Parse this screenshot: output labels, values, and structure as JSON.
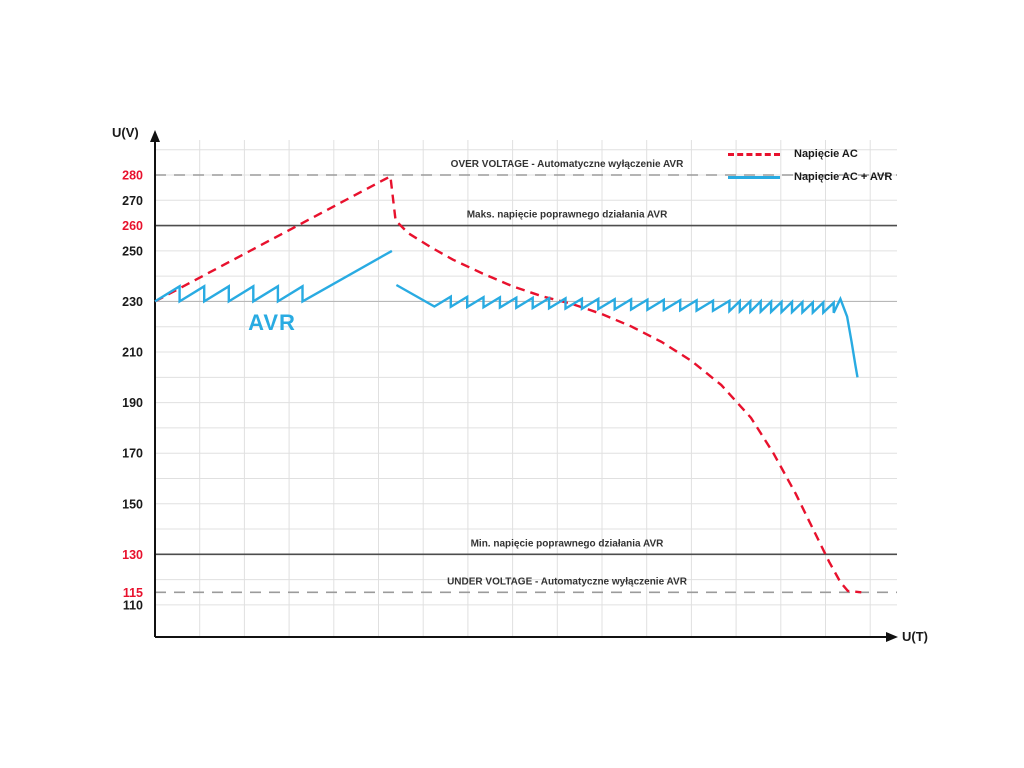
{
  "chart_data": {
    "type": "line",
    "title": "",
    "xlabel": "U(T)",
    "ylabel": "U(V)",
    "xlim": [
      0,
      100
    ],
    "ylim": [
      105,
      292
    ],
    "grid": {
      "enabled": true,
      "y_step_volts": 10,
      "x_step": 6
    },
    "legend_position": "top-right",
    "y_ticks": [
      {
        "value": 280,
        "color": "#e8112d"
      },
      {
        "value": 270,
        "color": "#1a1a1a"
      },
      {
        "value": 260,
        "color": "#e8112d"
      },
      {
        "value": 250,
        "color": "#1a1a1a"
      },
      {
        "value": 230,
        "color": "#1a1a1a"
      },
      {
        "value": 210,
        "color": "#1a1a1a"
      },
      {
        "value": 190,
        "color": "#1a1a1a"
      },
      {
        "value": 170,
        "color": "#1a1a1a"
      },
      {
        "value": 150,
        "color": "#1a1a1a"
      },
      {
        "value": 130,
        "color": "#e8112d"
      },
      {
        "value": 115,
        "color": "#e8112d"
      },
      {
        "value": 110,
        "color": "#1a1a1a"
      }
    ],
    "reference_lines": [
      {
        "value": 280,
        "style": "dashed",
        "label": "OVER VOLTAGE - Automatyczne wyłączenie AVR"
      },
      {
        "value": 260,
        "style": "solid",
        "label": "Maks. napięcie poprawnego działania AVR"
      },
      {
        "value": 230,
        "style": "solid-light",
        "label": ""
      },
      {
        "value": 130,
        "style": "solid",
        "label": "Min. napięcie poprawnego działania AVR"
      },
      {
        "value": 115,
        "style": "dashed",
        "label": "UNDER VOLTAGE - Automatyczne wyłączenie AVR"
      }
    ],
    "series": [
      {
        "name": "Napięcie AC",
        "color": "#e8112d",
        "dash": true,
        "segments": [
          [
            [
              0,
              230
            ],
            [
              31.6,
              279.5
            ],
            [
              32.3,
              262
            ],
            [
              34,
              257
            ],
            [
              37,
              251.5
            ],
            [
              40,
              246.5
            ],
            [
              44,
              241
            ],
            [
              48,
              236
            ],
            [
              52,
              232
            ],
            [
              56,
              229
            ],
            [
              60,
              225
            ],
            [
              64,
              220
            ],
            [
              68,
              214
            ],
            [
              72,
              206.5
            ],
            [
              76,
              197
            ],
            [
              80,
              184
            ],
            [
              83,
              170
            ],
            [
              86,
              154
            ],
            [
              88.5,
              139
            ],
            [
              90.5,
              127
            ],
            [
              92,
              119
            ],
            [
              93,
              115.5
            ],
            [
              94.8,
              115
            ]
          ]
        ]
      },
      {
        "name": "Napięcie AC + AVR",
        "color": "#29abe2",
        "dash": false,
        "segments": [
          [
            [
              0,
              230
            ],
            [
              3.3,
              236
            ],
            [
              3.3,
              230
            ],
            [
              6.6,
              236
            ],
            [
              6.6,
              230
            ],
            [
              9.9,
              236
            ],
            [
              9.9,
              230
            ],
            [
              13.2,
              236
            ],
            [
              13.2,
              230
            ],
            [
              16.5,
              236
            ],
            [
              16.5,
              230
            ],
            [
              19.8,
              236
            ],
            [
              19.8,
              230
            ],
            [
              31.8,
              250
            ]
          ],
          [
            [
              32.4,
              236.5
            ],
            [
              37.5,
              228
            ],
            [
              39.7,
              231.9
            ],
            [
              39.7,
              227.9
            ],
            [
              41.9,
              231.8
            ],
            [
              41.9,
              227.8
            ],
            [
              44.1,
              231.7
            ],
            [
              44.1,
              227.7
            ],
            [
              46.3,
              231.6
            ],
            [
              46.3,
              227.6
            ],
            [
              48.5,
              231.5
            ],
            [
              48.5,
              227.5
            ],
            [
              50.7,
              231.4
            ],
            [
              50.7,
              227.4
            ],
            [
              52.9,
              231.3
            ],
            [
              52.9,
              227.3
            ],
            [
              55.1,
              231.2
            ],
            [
              55.1,
              227.2
            ],
            [
              57.3,
              231.1
            ],
            [
              57.3,
              227.1
            ],
            [
              59.5,
              231.0
            ],
            [
              59.5,
              227.0
            ],
            [
              61.7,
              230.9
            ],
            [
              61.7,
              226.9
            ],
            [
              63.9,
              230.8
            ],
            [
              63.9,
              226.8
            ],
            [
              66.1,
              230.7
            ],
            [
              66.1,
              226.7
            ],
            [
              68.3,
              230.6
            ],
            [
              68.3,
              226.6
            ],
            [
              70.5,
              230.5
            ],
            [
              70.5,
              226.5
            ],
            [
              72.7,
              230.4
            ],
            [
              72.7,
              226.4
            ],
            [
              74.9,
              230.3
            ],
            [
              74.9,
              226.3
            ],
            [
              77.1,
              230.2
            ],
            [
              77.1,
              226.2
            ],
            [
              78.5,
              230.1
            ],
            [
              78.5,
              226.1
            ],
            [
              79.9,
              230.0
            ],
            [
              79.9,
              226.0
            ],
            [
              81.3,
              230.0
            ],
            [
              81.3,
              226.0
            ],
            [
              82.7,
              229.9
            ],
            [
              82.7,
              225.9
            ],
            [
              84.1,
              229.8
            ],
            [
              84.1,
              225.8
            ],
            [
              85.5,
              229.8
            ],
            [
              85.5,
              225.8
            ],
            [
              86.9,
              229.7
            ],
            [
              86.9,
              225.7
            ],
            [
              88.3,
              229.6
            ],
            [
              88.3,
              225.6
            ],
            [
              89.7,
              229.6
            ],
            [
              89.7,
              225.6
            ],
            [
              91.1,
              229.5
            ],
            [
              91.1,
              225.5
            ],
            [
              92.0,
              231
            ],
            [
              92.9,
              224
            ],
            [
              93.5,
              214
            ],
            [
              94.0,
              205
            ],
            [
              94.3,
              200
            ]
          ]
        ]
      }
    ],
    "annotation": {
      "text": "AVR",
      "t": 12.5,
      "v": 221,
      "color": "#29abe2"
    }
  },
  "legend": {
    "items": [
      {
        "label": "Napięcie AC"
      },
      {
        "label": "Napięcie AC + AVR"
      }
    ]
  },
  "colors": {
    "ac": "#e8112d",
    "avr": "#29abe2",
    "grid": "#e0e0e0",
    "grid_strong": "#b8b8b8",
    "reference_solid": "#4d4d4d",
    "reference_dashed": "#9b9b9b",
    "axis": "#111111",
    "label": "#333333"
  }
}
